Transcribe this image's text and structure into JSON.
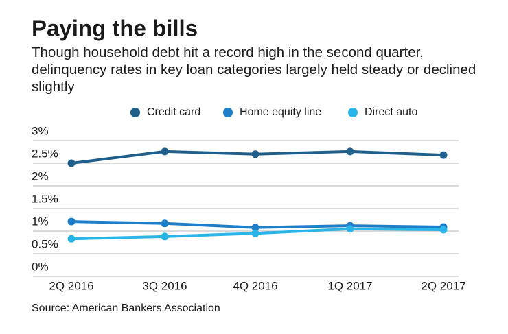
{
  "chart_data": {
    "type": "line",
    "title": "Paying the bills",
    "subtitle": "Though household debt hit a record high in the second quarter, delinquency rates in key loan categories largely held steady or declined slightly",
    "source": "Source: American Bankers Association",
    "categories": [
      "2Q 2016",
      "3Q 2016",
      "4Q 2016",
      "1Q 2017",
      "2Q 2017"
    ],
    "series": [
      {
        "name": "Credit card",
        "color": "#1f5f8b",
        "values": [
          2.5,
          2.76,
          2.7,
          2.76,
          2.68
        ]
      },
      {
        "name": "Home equity line",
        "color": "#1e7fc8",
        "values": [
          1.21,
          1.17,
          1.08,
          1.12,
          1.09
        ]
      },
      {
        "name": "Direct auto",
        "color": "#29b5e8",
        "values": [
          0.83,
          0.88,
          0.95,
          1.05,
          1.03
        ]
      }
    ],
    "ylim": [
      0,
      3
    ],
    "yticks": [
      {
        "value": 0,
        "label": "0%"
      },
      {
        "value": 0.5,
        "label": "0.5%"
      },
      {
        "value": 1,
        "label": "1%"
      },
      {
        "value": 1.5,
        "label": "1.5%"
      },
      {
        "value": 2,
        "label": "2%"
      },
      {
        "value": 2.5,
        "label": "2.5%"
      },
      {
        "value": 3,
        "label": "3%"
      }
    ],
    "grid": true,
    "legend": "top"
  }
}
